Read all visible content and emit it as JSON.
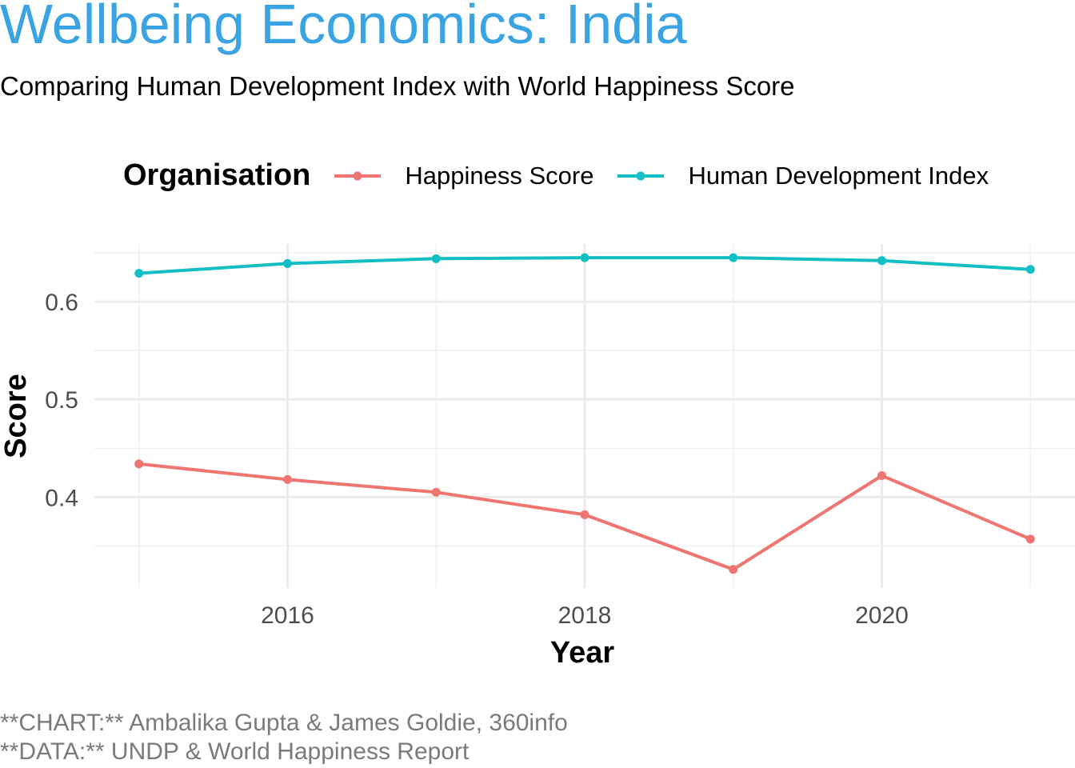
{
  "title": "Wellbeing Economics: India",
  "subtitle": "Comparing Human Development Index with World Happiness Score",
  "legend": {
    "title": "Organisation",
    "items": [
      {
        "label": "Happiness Score",
        "color": "#f07470"
      },
      {
        "label": "Human Development Index",
        "color": "#12bfc4"
      }
    ]
  },
  "caption": [
    "**CHART:** Ambalika Gupta & James Goldie, 360info",
    "**DATA:** UNDP & World Happiness Report"
  ],
  "chart_data": {
    "type": "line",
    "xlabel": "Year",
    "ylabel": "Score",
    "x": [
      2015,
      2016,
      2017,
      2018,
      2019,
      2020,
      2021
    ],
    "xticks": [
      2016,
      2018,
      2020
    ],
    "yticks": [
      0.4,
      0.5,
      0.6
    ],
    "xlim": [
      2014.7,
      2021.3
    ],
    "ylim": [
      0.307,
      0.659
    ],
    "grid": true,
    "legend_position": "top",
    "series": [
      {
        "name": "Happiness Score",
        "color": "#f07470",
        "values": [
          0.434,
          0.418,
          0.405,
          0.382,
          0.326,
          0.422,
          0.357
        ]
      },
      {
        "name": "Human Development Index",
        "color": "#12bfc4",
        "values": [
          0.629,
          0.639,
          0.644,
          0.645,
          0.645,
          0.642,
          0.633
        ]
      }
    ]
  }
}
